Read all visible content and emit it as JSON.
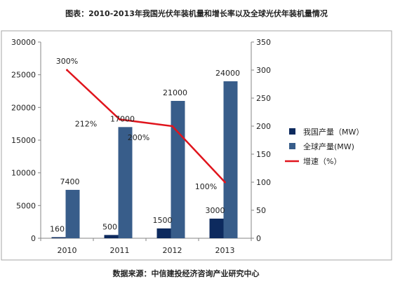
{
  "chart_data": {
    "type": "bar+line",
    "title": "图表：2010-2013年我国光伏年装机量和增长率以及全球光伏年装机量情况",
    "source": "数据来源：中信建投经济咨询产业研究中心",
    "categories": [
      "2010",
      "2011",
      "2012",
      "2013"
    ],
    "left_axis": {
      "ylim": [
        0,
        30000
      ],
      "ticks": [
        "0",
        "5000",
        "10000",
        "15000",
        "20000",
        "25000",
        "30000"
      ]
    },
    "right_axis": {
      "ylim": [
        0,
        350
      ],
      "ticks": [
        "0",
        "50",
        "100",
        "150",
        "200",
        "250",
        "300",
        "350"
      ]
    },
    "series": [
      {
        "name": "我国产量（MW）",
        "kind": "bar",
        "axis": "left",
        "color": "#0d2a5e",
        "values": [
          160,
          500,
          1500,
          3000
        ],
        "labels": [
          "160",
          "500",
          "1500",
          "3000"
        ]
      },
      {
        "name": "全球产量(MW)",
        "kind": "bar",
        "axis": "left",
        "color": "#385d8a",
        "values": [
          7400,
          17000,
          21000,
          24000
        ],
        "labels": [
          "7400",
          "17000",
          "21000",
          "24000"
        ]
      },
      {
        "name": "增速（%）",
        "kind": "line",
        "axis": "right",
        "color": "#e0141c",
        "values": [
          300,
          212,
          200,
          100
        ],
        "labels": [
          "300%",
          "212%",
          "200%",
          "100%"
        ]
      }
    ],
    "grid": false,
    "legend": "right"
  }
}
